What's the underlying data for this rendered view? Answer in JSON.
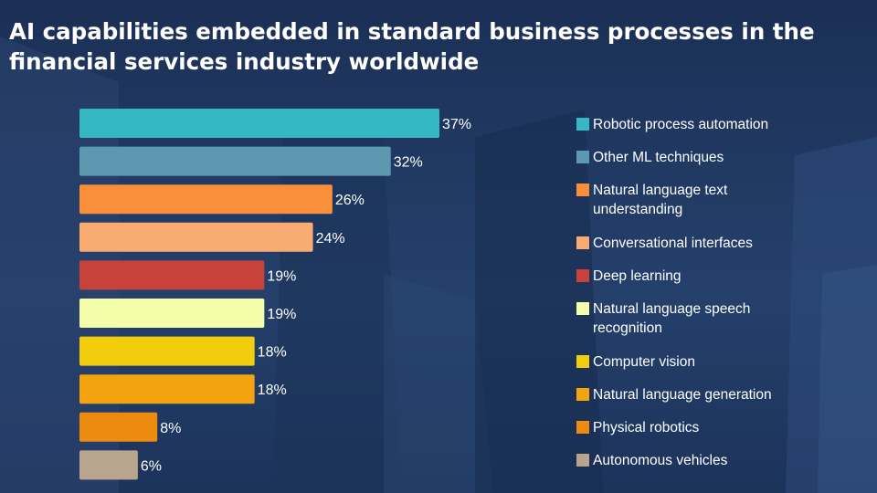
{
  "title": "AI capabilities embedded in standard business processes in the financial services industry worldwide",
  "chart_data": {
    "type": "bar",
    "orientation": "horizontal",
    "title": "AI capabilities embedded in standard business processes in the financial services industry worldwide",
    "xlabel": "",
    "ylabel": "",
    "xlim": [
      0,
      37
    ],
    "grid": false,
    "legend_position": "right",
    "value_suffix": "%",
    "categories": [
      "Robotic process automation",
      "Other ML techniques",
      "Natural language text understanding",
      "Conversational interfaces",
      "Deep learning",
      "Natural language speech recognition",
      "Computer vision",
      "Natural language generation",
      "Physical robotics",
      "Autonomous vehicles"
    ],
    "values": [
      37,
      32,
      26,
      24,
      19,
      19,
      18,
      18,
      8,
      6
    ],
    "data_labels": [
      "37%",
      "32%",
      "26%",
      "24%",
      "19%",
      "19%",
      "18%",
      "18%",
      "8%",
      "6%"
    ],
    "colors": [
      "#36b8c4",
      "#5e98b0",
      "#f98f3a",
      "#f8ac72",
      "#c6423a",
      "#f4fdaa",
      "#f2cd0e",
      "#f2a30e",
      "#ed8a10",
      "#b9a48e"
    ]
  }
}
